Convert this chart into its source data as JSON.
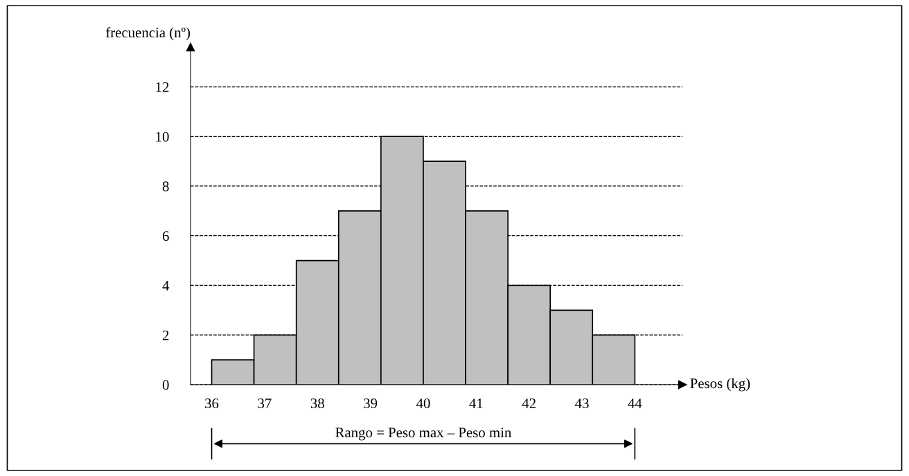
{
  "chart_data": {
    "type": "histogram",
    "xlabel": "Pesos (kg)",
    "ylabel": "frecuencia (nº)",
    "bins": [
      36,
      36.8,
      37.6,
      38.4,
      39.2,
      40,
      40.8,
      41.6,
      42.4,
      43.2,
      44
    ],
    "values": [
      1,
      2,
      5,
      7,
      10,
      9,
      7,
      4,
      3,
      2
    ],
    "color": "#c0c0c0",
    "xlim": [
      35.6,
      44.9
    ],
    "ylim": [
      0,
      13.6
    ],
    "xticks": [
      36,
      37,
      38,
      39,
      40,
      41,
      42,
      43,
      44
    ],
    "yticks": [
      0,
      2,
      4,
      6,
      8,
      10,
      12
    ],
    "grid": "y",
    "line_style": "dashed",
    "annotations": [
      "Rango = Peso max – Peso min"
    ]
  }
}
